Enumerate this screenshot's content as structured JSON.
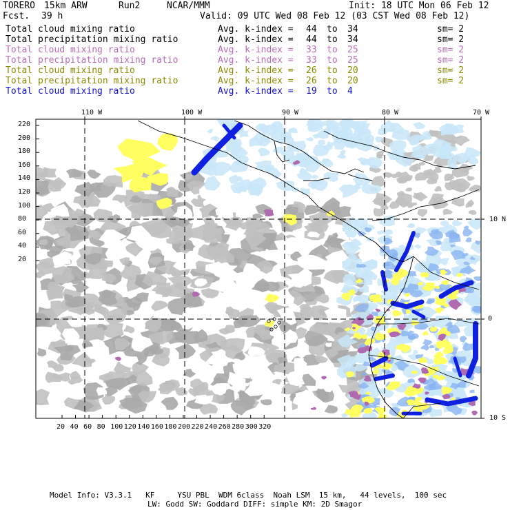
{
  "header": {
    "model": "TORERO",
    "resolution": "15km ARW",
    "run": "Run2",
    "org": "NCAR/MMM",
    "init": "Init: 18 UTC Mon 06 Feb 12",
    "fcst_label": "Fcst.",
    "fcst_value": "39 h",
    "valid": "Valid: 09 UTC Wed 08 Feb 12 (03 CST Wed 08 Feb 12)"
  },
  "legend": [
    {
      "field": "Total cloud mixing ratio",
      "stat": "Avg. k-index =",
      "from": "44",
      "to_label": "to",
      "to": "34",
      "sm": "sm= 2",
      "color": "#000000"
    },
    {
      "field": "Total precipitation mixing ratio",
      "stat": "Avg. k-index =",
      "from": "44",
      "to_label": "to",
      "to": "34",
      "sm": "sm= 2",
      "color": "#000000"
    },
    {
      "field": "Total cloud mixing ratio",
      "stat": "Avg. k-index =",
      "from": "33",
      "to_label": "to",
      "to": "25",
      "sm": "sm= 2",
      "color": "#b86db8"
    },
    {
      "field": "Total precipitation mixing ratio",
      "stat": "Avg. k-index =",
      "from": "33",
      "to_label": "to",
      "to": "25",
      "sm": "sm= 2",
      "color": "#b86db8"
    },
    {
      "field": "Total cloud mixing ratio",
      "stat": "Avg. k-index =",
      "from": "26",
      "to_label": "to",
      "to": "20",
      "sm": "sm= 2",
      "color": "#8a8a00"
    },
    {
      "field": "Total precipitation mixing ratio",
      "stat": "Avg. k-index =",
      "from": "26",
      "to_label": "to",
      "to": "20",
      "sm": "sm= 2",
      "color": "#8a8a00"
    },
    {
      "field": "Total cloud mixing ratio",
      "stat": "Avg. k-index =",
      "from": "19",
      "to_label": "to",
      "to": "4",
      "sm": "",
      "color": "#1010d0"
    }
  ],
  "axes": {
    "top_lon_labels": [
      "110 W",
      "100 W",
      "90 W",
      "80 W",
      "70 W"
    ],
    "right_lat_labels": [
      "10 N",
      "0",
      "10 S"
    ],
    "left_ticks": [
      "220",
      "200",
      "180",
      "160",
      "140",
      "120",
      "100",
      "80",
      "60",
      "40",
      "20"
    ],
    "bottom_ticks": [
      "20",
      "40",
      "60",
      "80",
      "100",
      "120",
      "140",
      "160",
      "180",
      "200",
      "220",
      "240",
      "260",
      "280",
      "300",
      "320"
    ]
  },
  "colors": {
    "cloud_light": "#c0c0c0",
    "cloud_gray": "#a8a8a8",
    "magenta": "#b06ab0",
    "yellow": "#ffff60",
    "light_blue": "#c8e6f8",
    "mid_blue": "#8ab4f0",
    "deep_blue": "#1020e0"
  },
  "footer": {
    "line1": "Model Info: V3.3.1   KF     YSU PBL  WDM 6class  Noah LSM  15 km,   44 levels,  100 sec",
    "line2": "LW: Godd SW: Goddard DIFF: simple KM: 2D Smagor"
  }
}
